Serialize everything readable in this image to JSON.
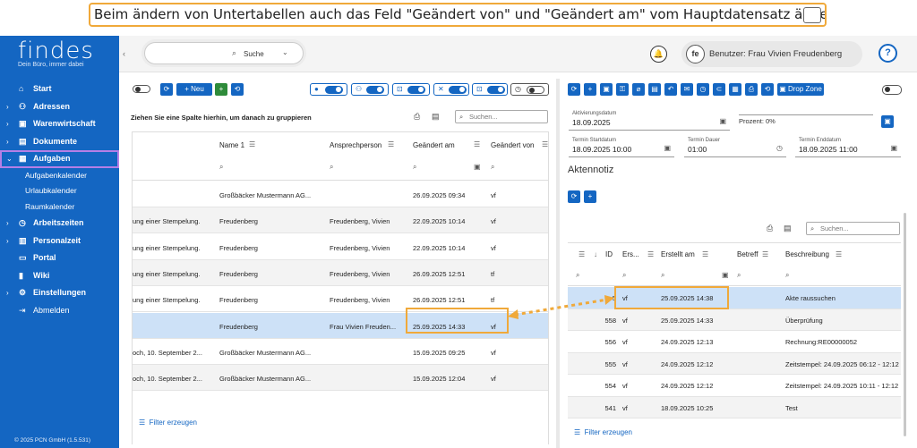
{
  "banner": {
    "text": "Beim ändern von Untertabellen auch das Feld \"Geändert von\" und \"Geändert am\" vom Hauptdatensatz ändern:"
  },
  "app": {
    "logo": "findes",
    "tagline": "Dein Büro, immer dabei",
    "copyright": "© 2025 PCN GmbH (1.5.531)"
  },
  "sidebar": {
    "items": [
      {
        "label": "Start",
        "icon": "home-icon"
      },
      {
        "label": "Adressen",
        "icon": "people-icon"
      },
      {
        "label": "Warenwirtschaft",
        "icon": "cart-icon"
      },
      {
        "label": "Dokumente",
        "icon": "archive-icon"
      },
      {
        "label": "Aufgaben",
        "icon": "tasks-icon"
      },
      {
        "label": "Arbeitszeiten",
        "icon": "clock-icon"
      },
      {
        "label": "Personalzeit",
        "icon": "calendar-icon"
      },
      {
        "label": "Portal",
        "icon": "monitor-icon"
      },
      {
        "label": "Wiki",
        "icon": "chart-icon"
      },
      {
        "label": "Einstellungen",
        "icon": "gear-icon"
      },
      {
        "label": "Abmelden",
        "icon": "logout-icon"
      }
    ],
    "subitems": [
      "Aufgabenkalender",
      "Urlaubkalender",
      "Raumkalender"
    ]
  },
  "topbar": {
    "search_label": "Suche",
    "user_label": "Benutzer: Frau Vivien Freudenberg",
    "fe_label": "fe"
  },
  "left": {
    "new_label": "Neu",
    "group_hint": "Ziehen Sie eine Spalte hierhin, um danach zu gruppieren",
    "search_placeholder": "Suchen...",
    "columns": [
      "Name 1",
      "Ansprechperson",
      "Geändert am",
      "Geändert von"
    ],
    "rows": [
      {
        "c0": "",
        "name": "Großbäcker Mustermann AG...",
        "contact": "",
        "date": "26.09.2025 09:34",
        "by": "vf"
      },
      {
        "c0": "ung einer Stempelung.",
        "name": "Freudenberg",
        "contact": "Freudenberg, Vivien",
        "date": "22.09.2025 10:14",
        "by": "vf"
      },
      {
        "c0": "ung einer Stempelung.",
        "name": "Freudenberg",
        "contact": "Freudenberg, Vivien",
        "date": "22.09.2025 10:14",
        "by": "vf"
      },
      {
        "c0": "ung einer Stempelung.",
        "name": "Freudenberg",
        "contact": "Freudenberg, Vivien",
        "date": "26.09.2025 12:51",
        "by": "tf"
      },
      {
        "c0": "ung einer Stempelung.",
        "name": "Freudenberg",
        "contact": "Freudenberg, Vivien",
        "date": "26.09.2025 12:51",
        "by": "tf"
      },
      {
        "c0": "",
        "name": "Freudenberg",
        "contact": "Frau Vivien Freuden...",
        "date": "25.09.2025 14:33",
        "by": "vf"
      },
      {
        "c0": "och, 10. September 2...",
        "name": "Großbäcker Mustermann AG...",
        "contact": "",
        "date": "15.09.2025 09:25",
        "by": "vf"
      },
      {
        "c0": "och, 10. September 2...",
        "name": "Großbäcker Mustermann AG...",
        "contact": "",
        "date": "15.09.2025 12:04",
        "by": "vf"
      }
    ],
    "filter_label": "Filter erzeugen"
  },
  "right": {
    "drop_zone_label": "Drop Zone",
    "fields": {
      "aktivierung_label": "Aktivierungsdatum",
      "aktivierung_value": "18.09.2025",
      "prozent": "Prozent: 0%",
      "start_label": "Termin Startdatum",
      "start_value": "18.09.2025 10:00",
      "dauer_label": "Termin Dauer",
      "dauer_value": "01:00",
      "ende_label": "Termin Enddatum",
      "ende_value": "18.09.2025 11:00"
    },
    "section_title": "Aktennotiz",
    "search_placeholder": "Suchen...",
    "columns": [
      "ID",
      "Ers...",
      "Erstellt am",
      "Betreff",
      "Beschreibung"
    ],
    "rows": [
      {
        "id": "5",
        "by": "vf",
        "date": "25.09.2025 14:38",
        "subject": "",
        "desc": "Akte raussuchen"
      },
      {
        "id": "558",
        "by": "vf",
        "date": "25.09.2025 14:33",
        "subject": "",
        "desc": "Überprüfung"
      },
      {
        "id": "556",
        "by": "vf",
        "date": "24.09.2025 12:13",
        "subject": "",
        "desc": "Rechnung:RE00000052"
      },
      {
        "id": "555",
        "by": "vf",
        "date": "24.09.2025 12:12",
        "subject": "",
        "desc": "Zeitstempel: 24.09.2025 06:12 - 12:12"
      },
      {
        "id": "554",
        "by": "vf",
        "date": "24.09.2025 12:12",
        "subject": "",
        "desc": "Zeitstempel: 24.09.2025 10:11 - 12:12"
      },
      {
        "id": "541",
        "by": "vf",
        "date": "18.09.2025 10:25",
        "subject": "",
        "desc": "Test"
      }
    ],
    "filter_label": "Filter erzeugen"
  },
  "colors": {
    "brand": "#1466c2",
    "highlight": "#f0a93a",
    "selected_row": "#cde1f7"
  }
}
